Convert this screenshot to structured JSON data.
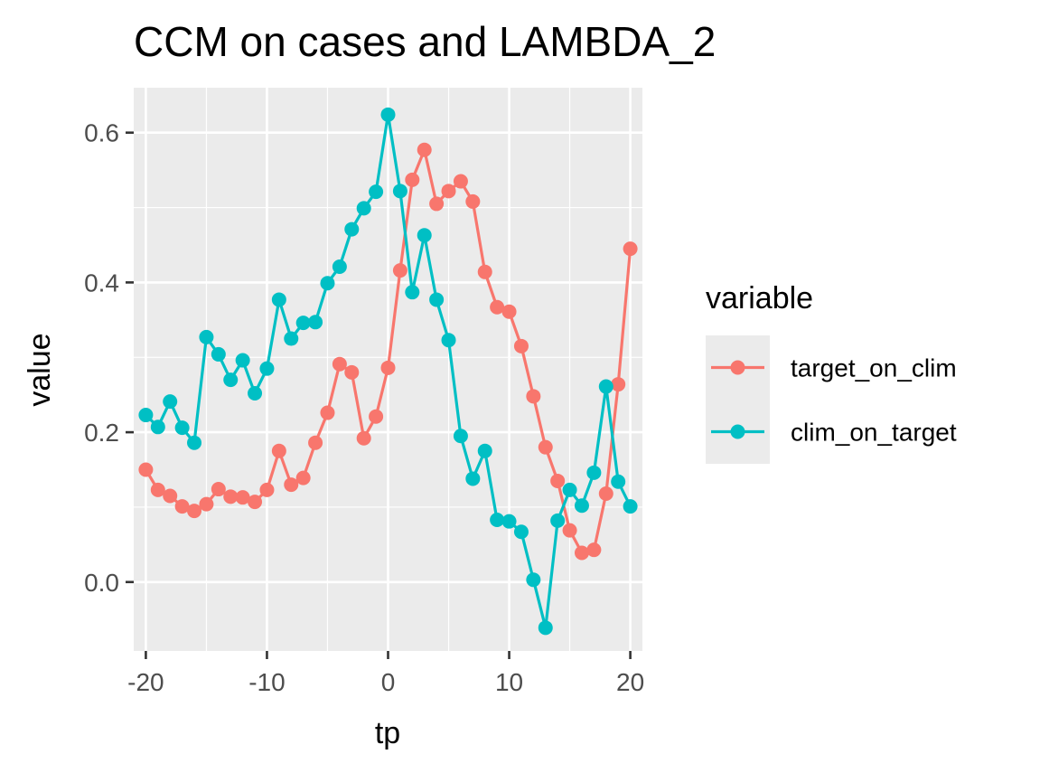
{
  "chart_data": {
    "type": "line",
    "title": "CCM on cases and LAMBDA_2",
    "xlabel": "tp",
    "ylabel": "value",
    "xlim": [
      -21,
      21
    ],
    "ylim": [
      -0.092,
      0.66
    ],
    "x_ticks": [
      -20,
      -10,
      0,
      10,
      20
    ],
    "x_tick_labels": [
      "-20",
      "-10",
      "0",
      "10",
      "20"
    ],
    "y_ticks": [
      0.0,
      0.2,
      0.4,
      0.6
    ],
    "y_tick_labels": [
      "0.0",
      "0.2",
      "0.4",
      "0.6"
    ],
    "grid": true,
    "legend": {
      "title": "variable",
      "position": "right"
    },
    "x": [
      -20,
      -19,
      -18,
      -17,
      -16,
      -15,
      -14,
      -13,
      -12,
      -11,
      -10,
      -9,
      -8,
      -7,
      -6,
      -5,
      -4,
      -3,
      -2,
      -1,
      0,
      1,
      2,
      3,
      4,
      5,
      6,
      7,
      8,
      9,
      10,
      11,
      12,
      13,
      14,
      15,
      16,
      17,
      18,
      19,
      20
    ],
    "series": [
      {
        "name": "target_on_clim",
        "color": "#F8766D",
        "values": [
          0.15,
          0.123,
          0.115,
          0.101,
          0.095,
          0.104,
          0.124,
          0.114,
          0.113,
          0.107,
          0.123,
          0.175,
          0.13,
          0.139,
          0.186,
          0.226,
          0.291,
          0.28,
          0.192,
          0.221,
          0.286,
          0.416,
          0.537,
          0.577,
          0.505,
          0.522,
          0.535,
          0.508,
          0.414,
          0.367,
          0.361,
          0.315,
          0.248,
          0.18,
          0.135,
          0.069,
          0.039,
          0.043,
          0.118,
          0.264,
          0.445
        ]
      },
      {
        "name": "clim_on_target",
        "color": "#00BFC4",
        "values": [
          0.223,
          0.207,
          0.241,
          0.206,
          0.186,
          0.327,
          0.304,
          0.27,
          0.296,
          0.252,
          0.285,
          0.377,
          0.325,
          0.346,
          0.347,
          0.399,
          0.421,
          0.471,
          0.499,
          0.521,
          0.624,
          0.522,
          0.387,
          0.463,
          0.377,
          0.323,
          0.195,
          0.138,
          0.175,
          0.083,
          0.081,
          0.067,
          0.003,
          -0.061,
          0.082,
          0.123,
          0.102,
          0.146,
          0.261,
          0.134,
          0.101
        ]
      }
    ]
  }
}
